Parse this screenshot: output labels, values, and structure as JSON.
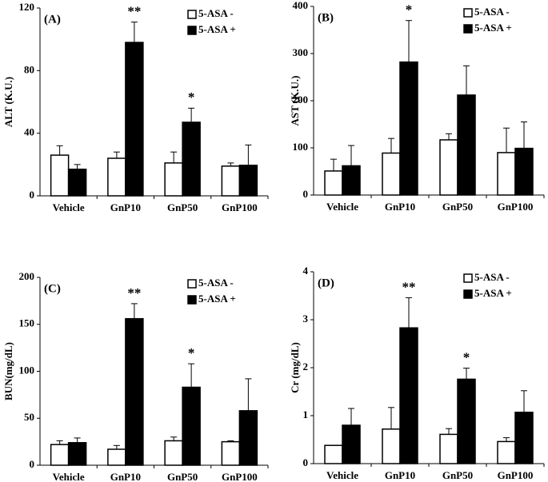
{
  "chart_data": [
    {
      "type": "bar",
      "title": "(A)",
      "ylabel": "ALT (K.U.)",
      "categories": [
        "Vehicle",
        "GnP10",
        "GnP50",
        "GnP100"
      ],
      "series": [
        {
          "name": "5-ASA -",
          "color": "#ffffff",
          "values": [
            26,
            24,
            21,
            19
          ],
          "errors": [
            6,
            4,
            7,
            2
          ]
        },
        {
          "name": "5-ASA +",
          "color": "#000000",
          "values": [
            17,
            98,
            47,
            19.5
          ],
          "errors": [
            3,
            13,
            9,
            13
          ],
          "annotations": [
            null,
            "**",
            "*",
            null
          ]
        }
      ],
      "ylim": [
        0,
        120
      ],
      "yticks": [
        0,
        40,
        80,
        120
      ]
    },
    {
      "type": "bar",
      "title": "(B)",
      "ylabel": "AST (K.U.)",
      "categories": [
        "Vehicle",
        "GnP10",
        "GnP50",
        "GnP100"
      ],
      "series": [
        {
          "name": "5-ASA -",
          "color": "#ffffff",
          "values": [
            51,
            89,
            117,
            90
          ],
          "errors": [
            25,
            31,
            13,
            52
          ]
        },
        {
          "name": "5-ASA +",
          "color": "#000000",
          "values": [
            62,
            282,
            212,
            99
          ],
          "errors": [
            43,
            88,
            62,
            56
          ],
          "annotations": [
            null,
            "*",
            null,
            null
          ]
        }
      ],
      "ylim": [
        0,
        400
      ],
      "yticks": [
        0,
        100,
        200,
        300,
        400
      ]
    },
    {
      "type": "bar",
      "title": "(C)",
      "ylabel": "BUN(mg/dL)",
      "categories": [
        "Vehicle",
        "GnP10",
        "GnP50",
        "GnP100"
      ],
      "series": [
        {
          "name": "5-ASA -",
          "color": "#ffffff",
          "values": [
            22,
            17,
            26,
            25
          ],
          "errors": [
            4,
            4,
            4,
            1
          ]
        },
        {
          "name": "5-ASA +",
          "color": "#000000",
          "values": [
            24,
            156,
            83,
            58
          ],
          "errors": [
            5,
            16,
            25,
            34
          ],
          "annotations": [
            null,
            "**",
            "*",
            null
          ]
        }
      ],
      "ylim": [
        0,
        200
      ],
      "yticks": [
        0,
        50,
        100,
        150,
        200
      ]
    },
    {
      "type": "bar",
      "title": "(D)",
      "ylabel": "Cr (mg/dL)",
      "categories": [
        "Vehicle",
        "GnP10",
        "GnP50",
        "GnP100"
      ],
      "series": [
        {
          "name": "5-ASA -",
          "color": "#ffffff",
          "values": [
            0.38,
            0.72,
            0.61,
            0.46
          ],
          "errors": [
            0,
            0.45,
            0.12,
            0.08
          ]
        },
        {
          "name": "5-ASA +",
          "color": "#000000",
          "values": [
            0.8,
            2.83,
            1.76,
            1.07
          ],
          "errors": [
            0.35,
            0.63,
            0.23,
            0.45
          ],
          "annotations": [
            null,
            "**",
            "*",
            null
          ]
        }
      ],
      "ylim": [
        0,
        4
      ],
      "yticks": [
        0,
        1,
        2,
        3,
        4
      ]
    }
  ]
}
